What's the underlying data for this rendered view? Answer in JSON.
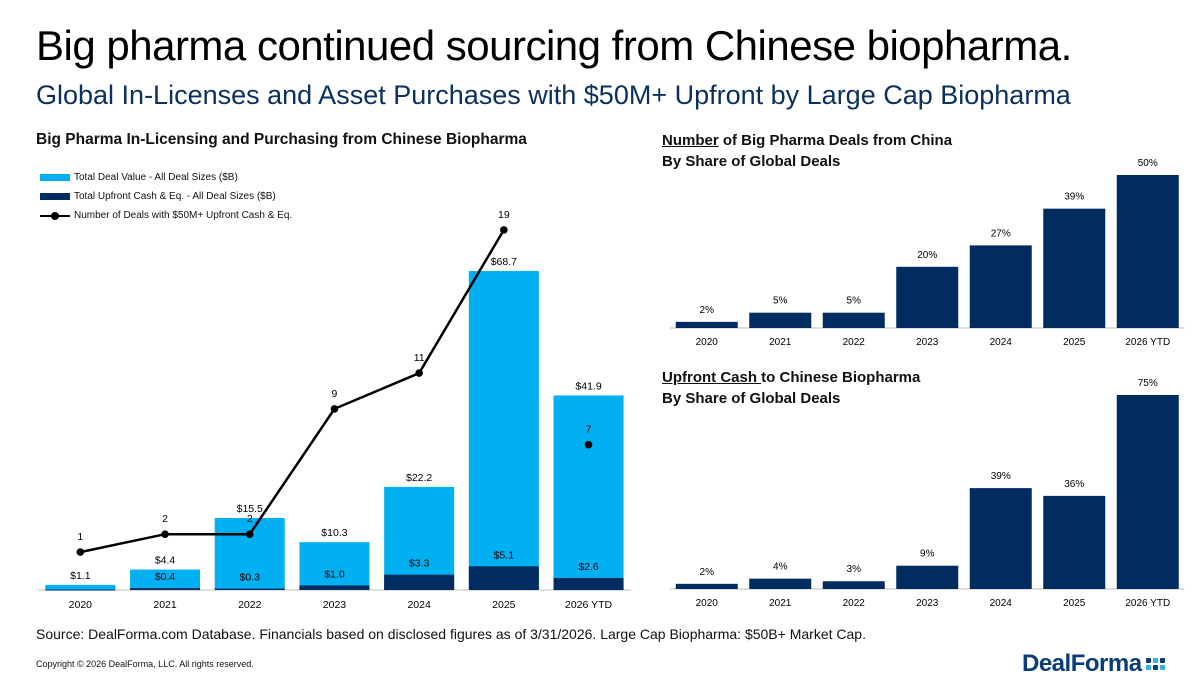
{
  "header": {
    "title": "Big pharma continued sourcing from Chinese biopharma.",
    "subtitle": "Global In-Licenses and Asset Purchases with $50M+ Upfront by Large Cap Biopharma"
  },
  "left_chart": {
    "title": "Big Pharma In-Licensing and Purchasing from Chinese Biopharma",
    "legend": {
      "total": "Total Deal Value - All Deal Sizes ($B)",
      "upfront": "Total Upfront Cash & Eq. - All Deal Sizes ($B)",
      "count": "Number of Deals with $50M+ Upfront Cash & Eq."
    }
  },
  "right_top": {
    "title_underlined": "Number",
    "title_rest": " of Big Pharma Deals from China",
    "title_line2": "By Share of Global Deals"
  },
  "right_bottom": {
    "title_underlined": "Upfront Cash ",
    "title_rest": "to Chinese Biopharma",
    "title_line2": "By Share of Global Deals"
  },
  "footer": {
    "source": "Source: DealForma.com Database. Financials based on disclosed figures as of 3/31/2026. Large Cap Biopharma: $50B+ Market Cap.",
    "copyright": "Copyright © 2026 DealForma, LLC. All rights reserved.",
    "logo": "DealForma"
  },
  "colors": {
    "light_blue": "#00b0f0",
    "navy": "#002c60",
    "line": "#000000"
  },
  "chart_data": [
    {
      "type": "bar",
      "categories": [
        "2020",
        "2021",
        "2022",
        "2023",
        "2024",
        "2025",
        "2026 YTD"
      ],
      "series": [
        {
          "name": "Total Deal Value - All Deal Sizes ($B)",
          "values": [
            1.1,
            4.4,
            15.5,
            10.3,
            22.2,
            68.7,
            41.9
          ],
          "labels": [
            "$1.1",
            "$4.4",
            "$15.5",
            "$10.3",
            "$22.2",
            "$68.7",
            "$41.9"
          ]
        },
        {
          "name": "Total Upfront Cash & Eq. - All Deal Sizes ($B)",
          "values": [
            0.1,
            0.4,
            0.3,
            1.0,
            3.3,
            5.1,
            2.6
          ],
          "labels": [
            "",
            "$0.4",
            "$0.3",
            "$1.0",
            "$3.3",
            "$5.1",
            "$2.6"
          ]
        },
        {
          "name": "Number of Deals with $50M+ Upfront Cash & Eq.",
          "type": "line",
          "values": [
            1,
            2,
            2,
            9,
            11,
            19,
            7
          ],
          "labels": [
            "1",
            "2",
            "2",
            "9",
            "11",
            "19",
            "7"
          ]
        }
      ],
      "ylim": [
        0,
        70
      ],
      "line_ylim": [
        0,
        20
      ]
    },
    {
      "type": "bar",
      "categories": [
        "2020",
        "2021",
        "2022",
        "2023",
        "2024",
        "2025",
        "2026 YTD"
      ],
      "values": [
        2,
        5,
        5,
        20,
        27,
        39,
        50
      ],
      "labels": [
        "2%",
        "5%",
        "5%",
        "20%",
        "27%",
        "39%",
        "50%"
      ]
    },
    {
      "type": "bar",
      "categories": [
        "2020",
        "2021",
        "2022",
        "2023",
        "2024",
        "2025",
        "2026 YTD"
      ],
      "values": [
        2,
        4,
        3,
        9,
        39,
        36,
        75
      ],
      "labels": [
        "2%",
        "4%",
        "3%",
        "9%",
        "39%",
        "36%",
        "75%"
      ]
    }
  ]
}
